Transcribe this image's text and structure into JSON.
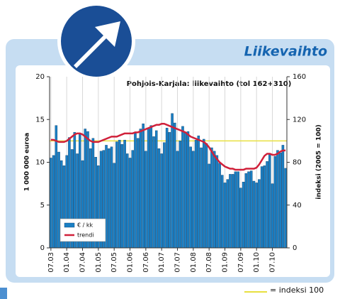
{
  "header": "Liikevaihto",
  "chart_data": {
    "type": "bar_line",
    "title": "Pohjois-Karjala: liikevaihto (tol 162+310)",
    "y_label": "1 000 000 euroa",
    "y2_label": "indeksi (2005 = 100)",
    "categories": [
      "07.03",
      null,
      null,
      null,
      null,
      null,
      "01.04",
      null,
      null,
      null,
      null,
      null,
      "07.04",
      null,
      null,
      null,
      null,
      null,
      "01.05",
      null,
      null,
      null,
      null,
      null,
      "07.05",
      null,
      null,
      null,
      null,
      null,
      "01.06",
      null,
      null,
      null,
      null,
      null,
      "07.06",
      null,
      null,
      null,
      null,
      null,
      "01.07",
      null,
      null,
      null,
      null,
      null,
      "07.07",
      null,
      null,
      null,
      null,
      null,
      "01.08",
      null,
      null,
      null,
      null,
      null,
      "07.08",
      null,
      null,
      null,
      null,
      null,
      "01.09",
      null,
      null,
      null,
      null,
      null,
      "07.09",
      null,
      null,
      null,
      null,
      null,
      "01.10",
      null,
      null,
      null,
      null,
      null,
      "07.10",
      null,
      null,
      null,
      null,
      null
    ],
    "series": [
      {
        "name": "€ / kk",
        "type": "bar",
        "color": "#1a7fc4",
        "values": [
          10.5,
          10.8,
          14.3,
          11.2,
          10.2,
          9.6,
          10.8,
          12.9,
          11.5,
          13.5,
          11.0,
          13.4,
          10.2,
          13.9,
          13.6,
          11.6,
          12.8,
          10.6,
          9.6,
          11.3,
          11.4,
          12.0,
          11.6,
          11.8,
          9.9,
          12.4,
          12.6,
          12.1,
          12.6,
          11.0,
          10.5,
          11.4,
          13.4,
          12.8,
          13.9,
          14.5,
          11.3,
          13.9,
          14.3,
          13.0,
          13.7,
          11.6,
          11.0,
          12.3,
          14.0,
          13.5,
          15.7,
          14.6,
          11.3,
          12.5,
          14.2,
          13.5,
          13.6,
          11.8,
          11.3,
          12.6,
          13.1,
          11.7,
          12.7,
          12.2,
          9.8,
          11.7,
          11.3,
          10.8,
          9.9,
          8.5,
          7.6,
          8.0,
          8.6,
          8.6,
          8.9,
          8.9,
          7.0,
          7.7,
          8.7,
          8.9,
          9.0,
          7.8,
          7.6,
          8.0,
          9.5,
          9.6,
          10.1,
          11.0,
          7.5,
          10.7,
          11.4,
          11.1,
          12.0,
          9.3
        ]
      },
      {
        "name": "trendi",
        "type": "line",
        "axis": "y2",
        "color": "#d0203a",
        "values": [
          101,
          101,
          100,
          99,
          99,
          99,
          100,
          102,
          104,
          106,
          107,
          107,
          106,
          104,
          102,
          100,
          99,
          99,
          99,
          100,
          101,
          102,
          103,
          104,
          104,
          104,
          105,
          106,
          107,
          107,
          107,
          107,
          108,
          108,
          109,
          110,
          111,
          112,
          113,
          114,
          115,
          115,
          116,
          116,
          115,
          114,
          113,
          112,
          111,
          110,
          109,
          108,
          106,
          104,
          103,
          102,
          101,
          100,
          99,
          97,
          94,
          90,
          86,
          83,
          80,
          78,
          76,
          75,
          74,
          74,
          73,
          73,
          73,
          73,
          74,
          74,
          74,
          74,
          75,
          78,
          82,
          86,
          88,
          88,
          87,
          87,
          88,
          90,
          91,
          91
        ]
      }
    ],
    "ylim": [
      0,
      20
    ],
    "yticks": [
      0,
      5,
      10,
      15,
      20
    ],
    "y2lim": [
      0,
      160
    ],
    "y2ticks": [
      0,
      40,
      80,
      120,
      160
    ],
    "grid": "x",
    "reference_line": {
      "value": 100,
      "axis": "y2",
      "color": "#e8e040",
      "label": "= indeksi 100"
    }
  }
}
